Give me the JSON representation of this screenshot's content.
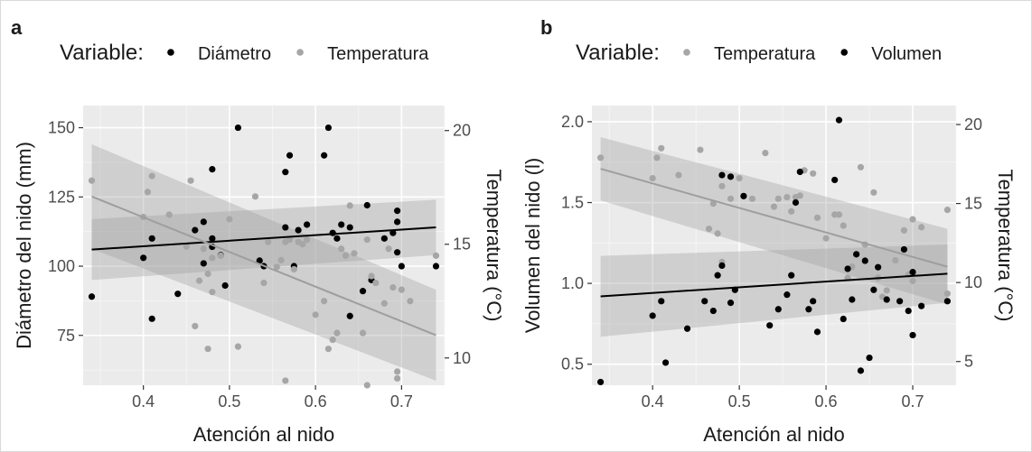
{
  "chart_data": [
    {
      "panel_label": "a",
      "type": "scatter",
      "legend": {
        "title": "Variable:",
        "position": "top",
        "entries": [
          {
            "name": "Diámetro",
            "color": "#000000"
          },
          {
            "name": "Temperatura",
            "color": "#a6a6a6"
          }
        ]
      },
      "xlabel": "Atención al nido",
      "ylabel": "Diámetro del nido (mm)",
      "y2label": "Temperatura (°C)",
      "xlim": [
        0.33,
        0.75
      ],
      "ylim": [
        57,
        158
      ],
      "y2lim": [
        8.8,
        21.1
      ],
      "xticks": [
        "0.4",
        "0.5",
        "0.6",
        "0.7"
      ],
      "yticks": [
        "75",
        "100",
        "125",
        "150"
      ],
      "y2ticks": [
        "10",
        "15",
        "20"
      ],
      "grid": true,
      "series": [
        {
          "name": "Diámetro",
          "color": "#000000",
          "axis": "left",
          "points": [
            [
              0.34,
              89
            ],
            [
              0.4,
              103
            ],
            [
              0.41,
              110
            ],
            [
              0.41,
              81
            ],
            [
              0.44,
              90
            ],
            [
              0.46,
              113
            ],
            [
              0.47,
              116
            ],
            [
              0.47,
              101
            ],
            [
              0.48,
              135
            ],
            [
              0.48,
              107
            ],
            [
              0.48,
              110
            ],
            [
              0.49,
              104
            ],
            [
              0.495,
              93
            ],
            [
              0.51,
              150
            ],
            [
              0.535,
              102
            ],
            [
              0.54,
              100
            ],
            [
              0.565,
              134
            ],
            [
              0.565,
              114
            ],
            [
              0.57,
              140
            ],
            [
              0.575,
              100
            ],
            [
              0.58,
              113
            ],
            [
              0.59,
              115
            ],
            [
              0.61,
              140
            ],
            [
              0.615,
              150
            ],
            [
              0.62,
              112
            ],
            [
              0.625,
              110
            ],
            [
              0.63,
              115
            ],
            [
              0.64,
              114
            ],
            [
              0.64,
              82
            ],
            [
              0.655,
              91
            ],
            [
              0.66,
              122
            ],
            [
              0.665,
              95
            ],
            [
              0.68,
              110
            ],
            [
              0.69,
              112
            ],
            [
              0.695,
              116
            ],
            [
              0.695,
              120
            ],
            [
              0.695,
              105
            ],
            [
              0.7,
              100
            ],
            [
              0.74,
              100
            ]
          ],
          "trend": {
            "x": [
              0.34,
              0.74
            ],
            "y": [
              106,
              114
            ],
            "ci_low": [
              95,
              104
            ],
            "ci_high": [
              117,
              124
            ]
          }
        },
        {
          "name": "Temperatura",
          "color": "#a6a6a6",
          "axis": "right",
          "points": [
            [
              0.34,
              17.8
            ],
            [
              0.4,
              16.2
            ],
            [
              0.405,
              17.3
            ],
            [
              0.41,
              18.0
            ],
            [
              0.43,
              16.3
            ],
            [
              0.45,
              14.9
            ],
            [
              0.455,
              17.8
            ],
            [
              0.46,
              11.4
            ],
            [
              0.465,
              13.4
            ],
            [
              0.47,
              14.8
            ],
            [
              0.475,
              13.7
            ],
            [
              0.475,
              10.4
            ],
            [
              0.48,
              14.4
            ],
            [
              0.48,
              12.9
            ],
            [
              0.49,
              14.5
            ],
            [
              0.5,
              16.1
            ],
            [
              0.51,
              10.5
            ],
            [
              0.53,
              17.1
            ],
            [
              0.54,
              13.3
            ],
            [
              0.545,
              15.1
            ],
            [
              0.555,
              14.0
            ],
            [
              0.56,
              14.3
            ],
            [
              0.565,
              15.1
            ],
            [
              0.565,
              9.0
            ],
            [
              0.57,
              15.2
            ],
            [
              0.575,
              13.9
            ],
            [
              0.58,
              15.1
            ],
            [
              0.585,
              15.0
            ],
            [
              0.59,
              15.2
            ],
            [
              0.6,
              11.9
            ],
            [
              0.61,
              12.5
            ],
            [
              0.615,
              10.4
            ],
            [
              0.62,
              10.8
            ],
            [
              0.625,
              11.1
            ],
            [
              0.63,
              14.8
            ],
            [
              0.635,
              14.5
            ],
            [
              0.64,
              16.7
            ],
            [
              0.645,
              14.6
            ],
            [
              0.655,
              11.1
            ],
            [
              0.66,
              15.2
            ],
            [
              0.66,
              8.8
            ],
            [
              0.665,
              13.6
            ],
            [
              0.67,
              13.3
            ],
            [
              0.68,
              12.4
            ],
            [
              0.685,
              14.8
            ],
            [
              0.69,
              13.1
            ],
            [
              0.695,
              9.4
            ],
            [
              0.695,
              9.1
            ],
            [
              0.7,
              13.0
            ],
            [
              0.71,
              12.5
            ],
            [
              0.74,
              14.5
            ]
          ],
          "trend": {
            "x": [
              0.34,
              0.74
            ],
            "y": [
              17.1,
              11.0
            ],
            "ci_low": [
              14.8,
              9.0
            ],
            "ci_high": [
              19.4,
              13.0
            ]
          }
        }
      ]
    },
    {
      "panel_label": "b",
      "type": "scatter",
      "legend": {
        "title": "Variable:",
        "position": "top",
        "entries": [
          {
            "name": "Temperatura",
            "color": "#a6a6a6"
          },
          {
            "name": "Volumen",
            "color": "#000000"
          }
        ]
      },
      "xlabel": "Atención al nido",
      "ylabel": "Volumen del nido (l)",
      "y2label": "Temperatura (°C)",
      "xlim": [
        0.33,
        0.75
      ],
      "ylim": [
        0.37,
        2.1
      ],
      "y2lim": [
        3.5,
        21.2
      ],
      "xticks": [
        "0.4",
        "0.5",
        "0.6",
        "0.7"
      ],
      "yticks": [
        "0.5",
        "1.0",
        "1.5",
        "2.0"
      ],
      "y2ticks": [
        "5",
        "10",
        "15",
        "20"
      ],
      "grid": true,
      "series": [
        {
          "name": "Temperatura",
          "color": "#a6a6a6",
          "axis": "right",
          "points": [
            [
              0.34,
              17.9
            ],
            [
              0.4,
              16.6
            ],
            [
              0.405,
              17.9
            ],
            [
              0.41,
              18.5
            ],
            [
              0.43,
              16.8
            ],
            [
              0.455,
              18.4
            ],
            [
              0.465,
              13.4
            ],
            [
              0.47,
              15.0
            ],
            [
              0.475,
              13.1
            ],
            [
              0.48,
              16.1
            ],
            [
              0.48,
              11.3
            ],
            [
              0.49,
              15.3
            ],
            [
              0.5,
              16.6
            ],
            [
              0.515,
              15.3
            ],
            [
              0.53,
              18.2
            ],
            [
              0.54,
              14.8
            ],
            [
              0.545,
              15.3
            ],
            [
              0.555,
              15.4
            ],
            [
              0.56,
              14.5
            ],
            [
              0.565,
              15.4
            ],
            [
              0.57,
              15.5
            ],
            [
              0.575,
              17.1
            ],
            [
              0.585,
              16.9
            ],
            [
              0.59,
              14.1
            ],
            [
              0.6,
              12.8
            ],
            [
              0.61,
              14.3
            ],
            [
              0.615,
              14.3
            ],
            [
              0.62,
              13.6
            ],
            [
              0.625,
              10.3
            ],
            [
              0.63,
              11.0
            ],
            [
              0.64,
              17.3
            ],
            [
              0.645,
              12.4
            ],
            [
              0.655,
              15.7
            ],
            [
              0.66,
              10.3
            ],
            [
              0.665,
              9.1
            ],
            [
              0.67,
              9.5
            ],
            [
              0.68,
              11.4
            ],
            [
              0.69,
              13.3
            ],
            [
              0.695,
              10.5
            ],
            [
              0.7,
              14.0
            ],
            [
              0.7,
              10.1
            ],
            [
              0.71,
              13.5
            ],
            [
              0.74,
              14.6
            ],
            [
              0.74,
              9.3
            ]
          ],
          "trend": {
            "x": [
              0.34,
              0.74
            ],
            "y": [
              17.2,
              11.0
            ],
            "ci_low": [
              15.2,
              8.6
            ],
            "ci_high": [
              19.2,
              13.4
            ]
          }
        },
        {
          "name": "Volumen",
          "color": "#000000",
          "axis": "left",
          "points": [
            [
              0.34,
              0.39
            ],
            [
              0.4,
              0.8
            ],
            [
              0.41,
              0.89
            ],
            [
              0.415,
              0.51
            ],
            [
              0.44,
              0.72
            ],
            [
              0.46,
              0.89
            ],
            [
              0.47,
              0.83
            ],
            [
              0.475,
              1.05
            ],
            [
              0.48,
              1.67
            ],
            [
              0.48,
              1.11
            ],
            [
              0.49,
              0.88
            ],
            [
              0.49,
              1.66
            ],
            [
              0.495,
              0.96
            ],
            [
              0.505,
              1.54
            ],
            [
              0.535,
              0.74
            ],
            [
              0.545,
              0.84
            ],
            [
              0.555,
              0.93
            ],
            [
              0.56,
              1.05
            ],
            [
              0.565,
              1.5
            ],
            [
              0.57,
              1.69
            ],
            [
              0.58,
              0.84
            ],
            [
              0.585,
              0.89
            ],
            [
              0.59,
              0.7
            ],
            [
              0.61,
              1.64
            ],
            [
              0.615,
              2.01
            ],
            [
              0.62,
              0.78
            ],
            [
              0.625,
              1.09
            ],
            [
              0.63,
              0.9
            ],
            [
              0.635,
              1.18
            ],
            [
              0.64,
              0.46
            ],
            [
              0.645,
              1.14
            ],
            [
              0.65,
              0.54
            ],
            [
              0.655,
              0.96
            ],
            [
              0.66,
              1.1
            ],
            [
              0.67,
              0.9
            ],
            [
              0.685,
              0.89
            ],
            [
              0.69,
              1.21
            ],
            [
              0.695,
              0.83
            ],
            [
              0.7,
              1.07
            ],
            [
              0.7,
              0.68
            ],
            [
              0.71,
              0.86
            ],
            [
              0.74,
              0.89
            ]
          ],
          "trend": {
            "x": [
              0.34,
              0.74
            ],
            "y": [
              0.92,
              1.06
            ],
            "ci_low": [
              0.67,
              0.88
            ],
            "ci_high": [
              1.17,
              1.24
            ]
          }
        }
      ]
    }
  ]
}
